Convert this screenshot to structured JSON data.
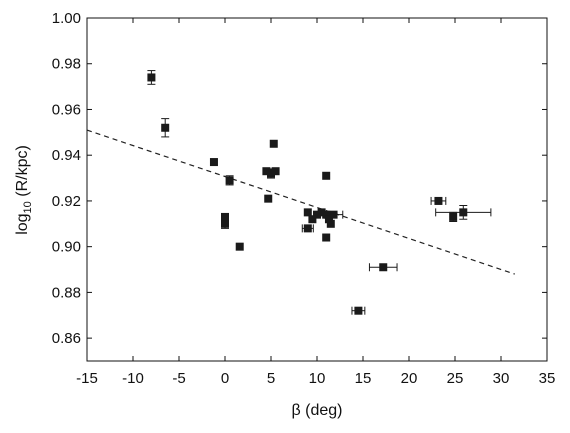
{
  "chart_data": {
    "type": "scatter",
    "title": "",
    "xlabel": "β (deg)",
    "ylabel": {
      "main": "log",
      "sub": "10",
      "rest": " (R/kpc)"
    },
    "xlim": [
      -15,
      35
    ],
    "ylim": [
      0.85,
      1.0
    ],
    "xticks": [
      -15,
      -10,
      -5,
      0,
      5,
      10,
      15,
      20,
      25,
      30,
      35
    ],
    "yticks": [
      0.86,
      0.88,
      0.9,
      0.92,
      0.94,
      0.96,
      0.98,
      1.0
    ],
    "xtick_labels": [
      "-15",
      "-10",
      "-5",
      "0",
      "5",
      "10",
      "15",
      "20",
      "25",
      "30",
      "35"
    ],
    "ytick_labels": [
      "0.86",
      "0.88",
      "0.90",
      "0.92",
      "0.94",
      "0.96",
      "0.98",
      "1.00"
    ],
    "grid": false,
    "legend": false,
    "marker_color": "#1a1a1a",
    "fit_line": {
      "style": "dashed",
      "x": [
        -15,
        31.5
      ],
      "y": [
        0.951,
        0.888
      ]
    },
    "points": [
      {
        "x": -8.0,
        "y": 0.974,
        "xerr": 0,
        "yerr": 0.003
      },
      {
        "x": -6.5,
        "y": 0.952,
        "xerr": 0,
        "yerr": 0.004
      },
      {
        "x": -1.2,
        "y": 0.937,
        "xerr": 0,
        "yerr": 0
      },
      {
        "x": 0.5,
        "y": 0.929,
        "xerr": 0,
        "yerr": 0.002
      },
      {
        "x": 0.0,
        "y": 0.913,
        "xerr": 0,
        "yerr": 0
      },
      {
        "x": 0.0,
        "y": 0.91,
        "xerr": 0,
        "yerr": 0.002
      },
      {
        "x": 1.6,
        "y": 0.9,
        "xerr": 0,
        "yerr": 0
      },
      {
        "x": 4.5,
        "y": 0.933,
        "xerr": 0,
        "yerr": 0
      },
      {
        "x": 5.0,
        "y": 0.932,
        "xerr": 0,
        "yerr": 0.002
      },
      {
        "x": 5.5,
        "y": 0.933,
        "xerr": 0,
        "yerr": 0
      },
      {
        "x": 5.3,
        "y": 0.945,
        "xerr": 0,
        "yerr": 0
      },
      {
        "x": 4.7,
        "y": 0.921,
        "xerr": 0,
        "yerr": 0
      },
      {
        "x": 11.0,
        "y": 0.931,
        "xerr": 0,
        "yerr": 0
      },
      {
        "x": 9.0,
        "y": 0.915,
        "xerr": 0,
        "yerr": 0
      },
      {
        "x": 9.5,
        "y": 0.912,
        "xerr": 0,
        "yerr": 0
      },
      {
        "x": 10.0,
        "y": 0.914,
        "xerr": 0,
        "yerr": 0
      },
      {
        "x": 10.5,
        "y": 0.915,
        "xerr": 0,
        "yerr": 0
      },
      {
        "x": 11.0,
        "y": 0.914,
        "xerr": 0,
        "yerr": 0
      },
      {
        "x": 11.3,
        "y": 0.912,
        "xerr": 0,
        "yerr": 0
      },
      {
        "x": 11.5,
        "y": 0.91,
        "xerr": 0,
        "yerr": 0
      },
      {
        "x": 11.8,
        "y": 0.914,
        "xerr": 1.0,
        "yerr": 0
      },
      {
        "x": 9.0,
        "y": 0.908,
        "xerr": 0.6,
        "yerr": 0
      },
      {
        "x": 11.0,
        "y": 0.904,
        "xerr": 0,
        "yerr": 0
      },
      {
        "x": 17.2,
        "y": 0.891,
        "xerr": 1.5,
        "yerr": 0
      },
      {
        "x": 14.5,
        "y": 0.872,
        "xerr": 0.7,
        "yerr": 0
      },
      {
        "x": 23.2,
        "y": 0.92,
        "xerr": 0.8,
        "yerr": 0
      },
      {
        "x": 24.8,
        "y": 0.913,
        "xerr": 0,
        "yerr": 0.002
      },
      {
        "x": 25.9,
        "y": 0.915,
        "xerr": 3.0,
        "yerr": 0.003
      }
    ]
  }
}
